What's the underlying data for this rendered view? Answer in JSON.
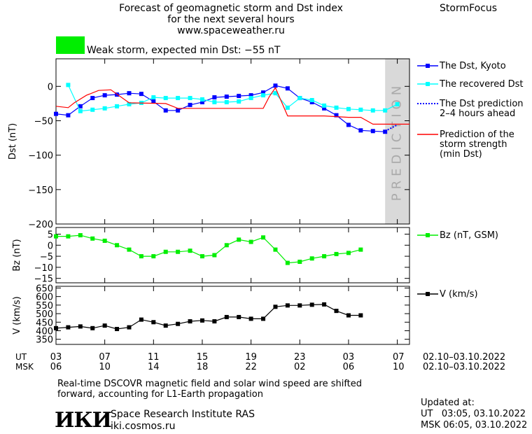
{
  "header": {
    "title_lines": [
      "Forecast of geomagnetic storm and Dst index",
      "for the next several hours",
      "www.spaceweather.ru"
    ],
    "brand": "StormFocus",
    "storm_status": "Weak storm, expected min Dst: −55 nT",
    "status_color": "#00ee00"
  },
  "footer": {
    "note_lines": [
      "Real-time DSCOVR magnetic field and solar wind speed are shifted",
      "forward, accounting for L1-Earth propagation"
    ],
    "institute": "Space Research Institute RAS",
    "site": "iki.cosmos.ru",
    "logo_text": "ИКИ",
    "updated_label": "Updated at:",
    "updated_ut": "UT   03:05, 03.10.2022",
    "updated_msk": "MSK 06:05, 03.10.2022"
  },
  "chart_data": [
    {
      "type": "line",
      "name": "dst-panel",
      "ylabel": "Dst (nT)",
      "ylim": [
        -200,
        40
      ],
      "yticks": [
        0,
        -50,
        -100,
        -150,
        -200
      ],
      "xlim": [
        0,
        29
      ],
      "prediction_band": {
        "from": 27,
        "to": 31,
        "label": "PREDICTION"
      },
      "series": [
        {
          "name": "The Dst, Kyoto",
          "color": "#0000ff",
          "marker": "square",
          "x": [
            0,
            1,
            2,
            3,
            4,
            5,
            6,
            7,
            8,
            9,
            10,
            11,
            12,
            13,
            14,
            15,
            16,
            17,
            18,
            19,
            20,
            21,
            22,
            23,
            24,
            25,
            26,
            27
          ],
          "y": [
            -40,
            -42,
            -29,
            -17,
            -13,
            -12,
            -10,
            -11,
            -22,
            -35,
            -35,
            -27,
            -23,
            -16,
            -15,
            -14,
            -13,
            -9,
            1,
            -3,
            -17,
            -23,
            -32,
            -42,
            -56,
            -64,
            -65,
            -66
          ]
        },
        {
          "name": "The recovered Dst",
          "color": "#00ffff",
          "marker": "square",
          "x": [
            1,
            2,
            3,
            4,
            5,
            6,
            7,
            8,
            9,
            10,
            11,
            12,
            13,
            14,
            15,
            16,
            17,
            18,
            19,
            20,
            21,
            22,
            23,
            24,
            25,
            26,
            27,
            28
          ],
          "y": [
            2,
            -36,
            -34,
            -32,
            -29,
            -26,
            -24,
            -16,
            -17,
            -17,
            -17,
            -19,
            -23,
            -23,
            -22,
            -17,
            -13,
            -10,
            -31,
            -17,
            -20,
            -28,
            -31,
            -33,
            -34,
            -35,
            -35,
            -26
          ]
        },
        {
          "name": "The Dst prediction",
          "note": "2–4 hours ahead",
          "color": "#0000ff",
          "dotted": true,
          "x": [
            27,
            28
          ],
          "y": [
            -65,
            -56
          ]
        },
        {
          "name": "Prediction of the storm strength",
          "note": "(min Dst)",
          "color": "#ff0000",
          "x": [
            0,
            1,
            1.5,
            2.5,
            3.5,
            4.5,
            6,
            9,
            10,
            15,
            16,
            17,
            17.5,
            18,
            19,
            20,
            21,
            22,
            23,
            24,
            25,
            26,
            27,
            28,
            29
          ],
          "y": [
            -29,
            -31,
            -24,
            -13,
            -6,
            -5,
            -24,
            -25,
            -32,
            -32,
            -32,
            -32,
            -15,
            -2,
            -43,
            -43,
            -43,
            -43,
            -44,
            -45,
            -45,
            -55,
            -55,
            -55,
            -55
          ]
        }
      ]
    },
    {
      "type": "line",
      "name": "bz-panel",
      "ylabel": "Bz (nT)",
      "ylim": [
        -17,
        8
      ],
      "yticks": [
        5,
        0,
        -5,
        -10,
        -15
      ],
      "series": [
        {
          "name": "Bz (nT, GSM)",
          "color": "#00ee00",
          "marker": "square",
          "x": [
            0,
            1,
            2,
            3,
            4,
            5,
            6,
            7,
            8,
            9,
            10,
            11,
            12,
            13,
            14,
            15,
            16,
            17,
            18,
            19,
            20,
            21,
            22,
            23,
            24,
            25
          ],
          "y": [
            4,
            4,
            4.5,
            3,
            2,
            0,
            -2,
            -5,
            -5,
            -3,
            -3,
            -2.5,
            -5,
            -4.5,
            0,
            2.5,
            1.5,
            3.5,
            -2,
            -8,
            -7.5,
            -6,
            -5,
            -4,
            -3.5,
            -2
          ]
        }
      ]
    },
    {
      "type": "line",
      "name": "v-panel",
      "ylabel": "V (km/s)",
      "ylim": [
        320,
        660
      ],
      "yticks": [
        650,
        600,
        550,
        500,
        450,
        400,
        350
      ],
      "series": [
        {
          "name": "V (km/s)",
          "color": "#000000",
          "marker": "square",
          "x": [
            0,
            1,
            2,
            3,
            4,
            5,
            6,
            7,
            8,
            9,
            10,
            11,
            12,
            13,
            14,
            15,
            16,
            17,
            18,
            19,
            20,
            21,
            22,
            23,
            24,
            25
          ],
          "y": [
            415,
            420,
            425,
            415,
            430,
            410,
            420,
            465,
            450,
            430,
            440,
            455,
            460,
            455,
            480,
            480,
            470,
            470,
            540,
            548,
            548,
            552,
            554,
            516,
            490,
            490
          ]
        }
      ]
    },
    {
      "type": "axis",
      "name": "time-axis",
      "xlim": [
        0,
        29
      ],
      "ut_label": "UT",
      "msk_label": "MSK",
      "ut_ticks": [
        "03",
        "07",
        "11",
        "15",
        "19",
        "23",
        "03",
        "07"
      ],
      "msk_ticks": [
        "06",
        "10",
        "14",
        "18",
        "22",
        "02",
        "06",
        "10"
      ],
      "tick_x": [
        0,
        4,
        8,
        12,
        16,
        20,
        24,
        28
      ],
      "date_range": "02.10–03.10.2022"
    }
  ]
}
